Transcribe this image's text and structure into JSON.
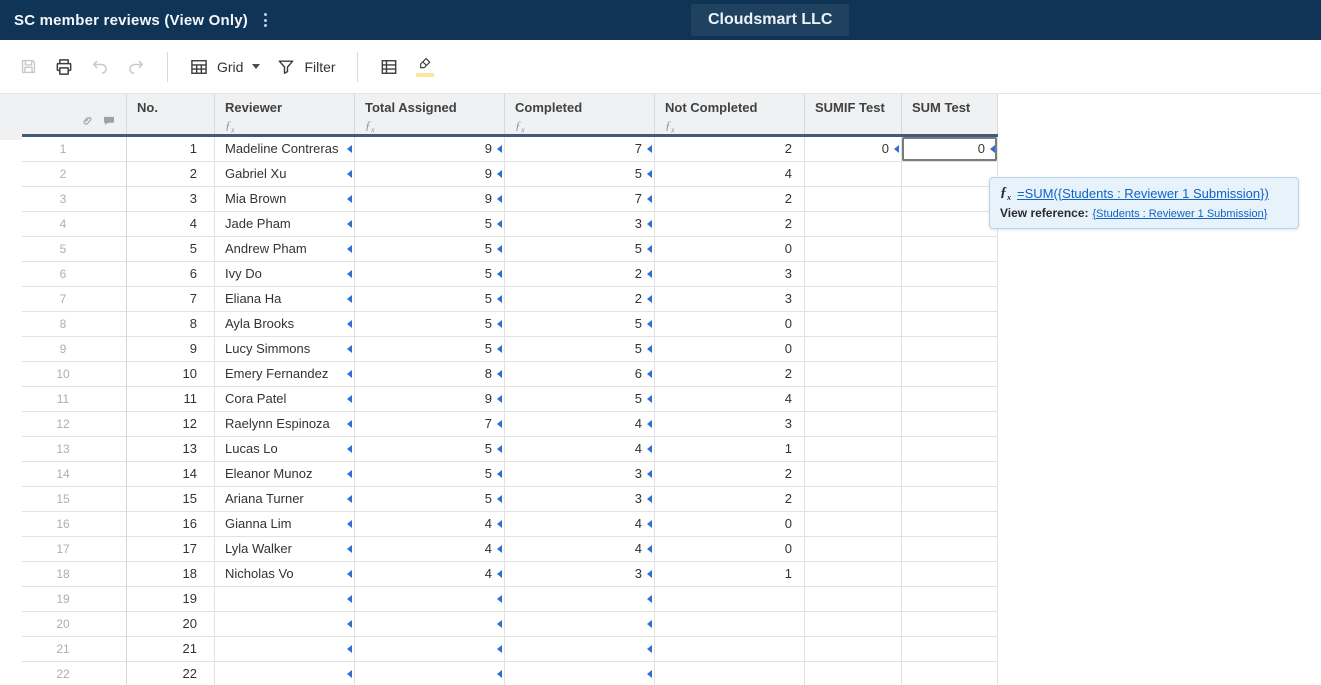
{
  "title_bar": {
    "title": "SC member reviews (View Only)",
    "org": "Cloudsmart LLC"
  },
  "toolbar": {
    "view_label": "Grid",
    "filter_label": "Filter"
  },
  "icons": {
    "save": "floppy-disk",
    "print": "printer",
    "undo": "curved-arrow-left",
    "redo": "curved-arrow-right",
    "view": "grid-table",
    "filter": "funnel",
    "summary": "table-list",
    "highlight": "highlighter-with-yellow-swatch",
    "attachment": "paperclip",
    "comment": "speech-bubble",
    "formula_column": "fx",
    "cell_link": "blue-left-triangle",
    "sheet_menu": "kebab-vertical"
  },
  "colors": {
    "titlebar_bg": "#0f3456",
    "header_underline": "#41597e",
    "column_header_bg": "#f0f1f2",
    "link_blue": "#1263c6",
    "cell_link_triangle": "#2e6fd4",
    "selection_border": "#7b7b7b",
    "tooltip_bg": "#e8f2fb",
    "highlight_yellow": "#f9e7a0"
  },
  "table": {
    "columns": [
      {
        "label": "No.",
        "has_fx": false
      },
      {
        "label": "Reviewer",
        "has_fx": true
      },
      {
        "label": "Total Assigned",
        "has_fx": true
      },
      {
        "label": "Completed",
        "has_fx": true
      },
      {
        "label": "Not Completed",
        "has_fx": true
      },
      {
        "label": "SUMIF Test",
        "has_fx": false
      },
      {
        "label": "SUM Test",
        "has_fx": false
      }
    ],
    "cell_link_indicator_columns": [
      "reviewer",
      "total",
      "completed"
    ],
    "row1_indicator_columns": [
      "sumif",
      "sum"
    ],
    "selection": {
      "row": 1,
      "column": "sum"
    },
    "rows": [
      {
        "n": "1",
        "no": "1",
        "reviewer": "Madeline Contreras",
        "total": "9",
        "completed": "7",
        "not_completed": "2",
        "sumif": "0",
        "sum": "0"
      },
      {
        "n": "2",
        "no": "2",
        "reviewer": "Gabriel Xu",
        "total": "9",
        "completed": "5",
        "not_completed": "4",
        "sumif": "",
        "sum": ""
      },
      {
        "n": "3",
        "no": "3",
        "reviewer": "Mia Brown",
        "total": "9",
        "completed": "7",
        "not_completed": "2",
        "sumif": "",
        "sum": ""
      },
      {
        "n": "4",
        "no": "4",
        "reviewer": "Jade Pham",
        "total": "5",
        "completed": "3",
        "not_completed": "2",
        "sumif": "",
        "sum": ""
      },
      {
        "n": "5",
        "no": "5",
        "reviewer": "Andrew Pham",
        "total": "5",
        "completed": "5",
        "not_completed": "0",
        "sumif": "",
        "sum": ""
      },
      {
        "n": "6",
        "no": "6",
        "reviewer": "Ivy Do",
        "total": "5",
        "completed": "2",
        "not_completed": "3",
        "sumif": "",
        "sum": ""
      },
      {
        "n": "7",
        "no": "7",
        "reviewer": "Eliana Ha",
        "total": "5",
        "completed": "2",
        "not_completed": "3",
        "sumif": "",
        "sum": ""
      },
      {
        "n": "8",
        "no": "8",
        "reviewer": "Ayla Brooks",
        "total": "5",
        "completed": "5",
        "not_completed": "0",
        "sumif": "",
        "sum": ""
      },
      {
        "n": "9",
        "no": "9",
        "reviewer": "Lucy Simmons",
        "total": "5",
        "completed": "5",
        "not_completed": "0",
        "sumif": "",
        "sum": ""
      },
      {
        "n": "10",
        "no": "10",
        "reviewer": "Emery Fernandez",
        "total": "8",
        "completed": "6",
        "not_completed": "2",
        "sumif": "",
        "sum": ""
      },
      {
        "n": "11",
        "no": "11",
        "reviewer": "Cora Patel",
        "total": "9",
        "completed": "5",
        "not_completed": "4",
        "sumif": "",
        "sum": ""
      },
      {
        "n": "12",
        "no": "12",
        "reviewer": "Raelynn Espinoza",
        "total": "7",
        "completed": "4",
        "not_completed": "3",
        "sumif": "",
        "sum": ""
      },
      {
        "n": "13",
        "no": "13",
        "reviewer": "Lucas Lo",
        "total": "5",
        "completed": "4",
        "not_completed": "1",
        "sumif": "",
        "sum": ""
      },
      {
        "n": "14",
        "no": "14",
        "reviewer": "Eleanor Munoz",
        "total": "5",
        "completed": "3",
        "not_completed": "2",
        "sumif": "",
        "sum": ""
      },
      {
        "n": "15",
        "no": "15",
        "reviewer": "Ariana Turner",
        "total": "5",
        "completed": "3",
        "not_completed": "2",
        "sumif": "",
        "sum": ""
      },
      {
        "n": "16",
        "no": "16",
        "reviewer": "Gianna Lim",
        "total": "4",
        "completed": "4",
        "not_completed": "0",
        "sumif": "",
        "sum": ""
      },
      {
        "n": "17",
        "no": "17",
        "reviewer": "Lyla Walker",
        "total": "4",
        "completed": "4",
        "not_completed": "0",
        "sumif": "",
        "sum": ""
      },
      {
        "n": "18",
        "no": "18",
        "reviewer": "Nicholas Vo",
        "total": "4",
        "completed": "3",
        "not_completed": "1",
        "sumif": "",
        "sum": ""
      },
      {
        "n": "19",
        "no": "19",
        "reviewer": "",
        "total": "",
        "completed": "",
        "not_completed": "",
        "sumif": "",
        "sum": ""
      },
      {
        "n": "20",
        "no": "20",
        "reviewer": "",
        "total": "",
        "completed": "",
        "not_completed": "",
        "sumif": "",
        "sum": ""
      },
      {
        "n": "21",
        "no": "21",
        "reviewer": "",
        "total": "",
        "completed": "",
        "not_completed": "",
        "sumif": "",
        "sum": ""
      },
      {
        "n": "22",
        "no": "22",
        "reviewer": "",
        "total": "",
        "completed": "",
        "not_completed": "",
        "sumif": "",
        "sum": ""
      }
    ]
  },
  "tooltip": {
    "formula": "=SUM({Students : Reviewer 1 Submission})",
    "view_reference_label": "View reference:",
    "reference": "{Students : Reviewer 1 Submission}"
  }
}
